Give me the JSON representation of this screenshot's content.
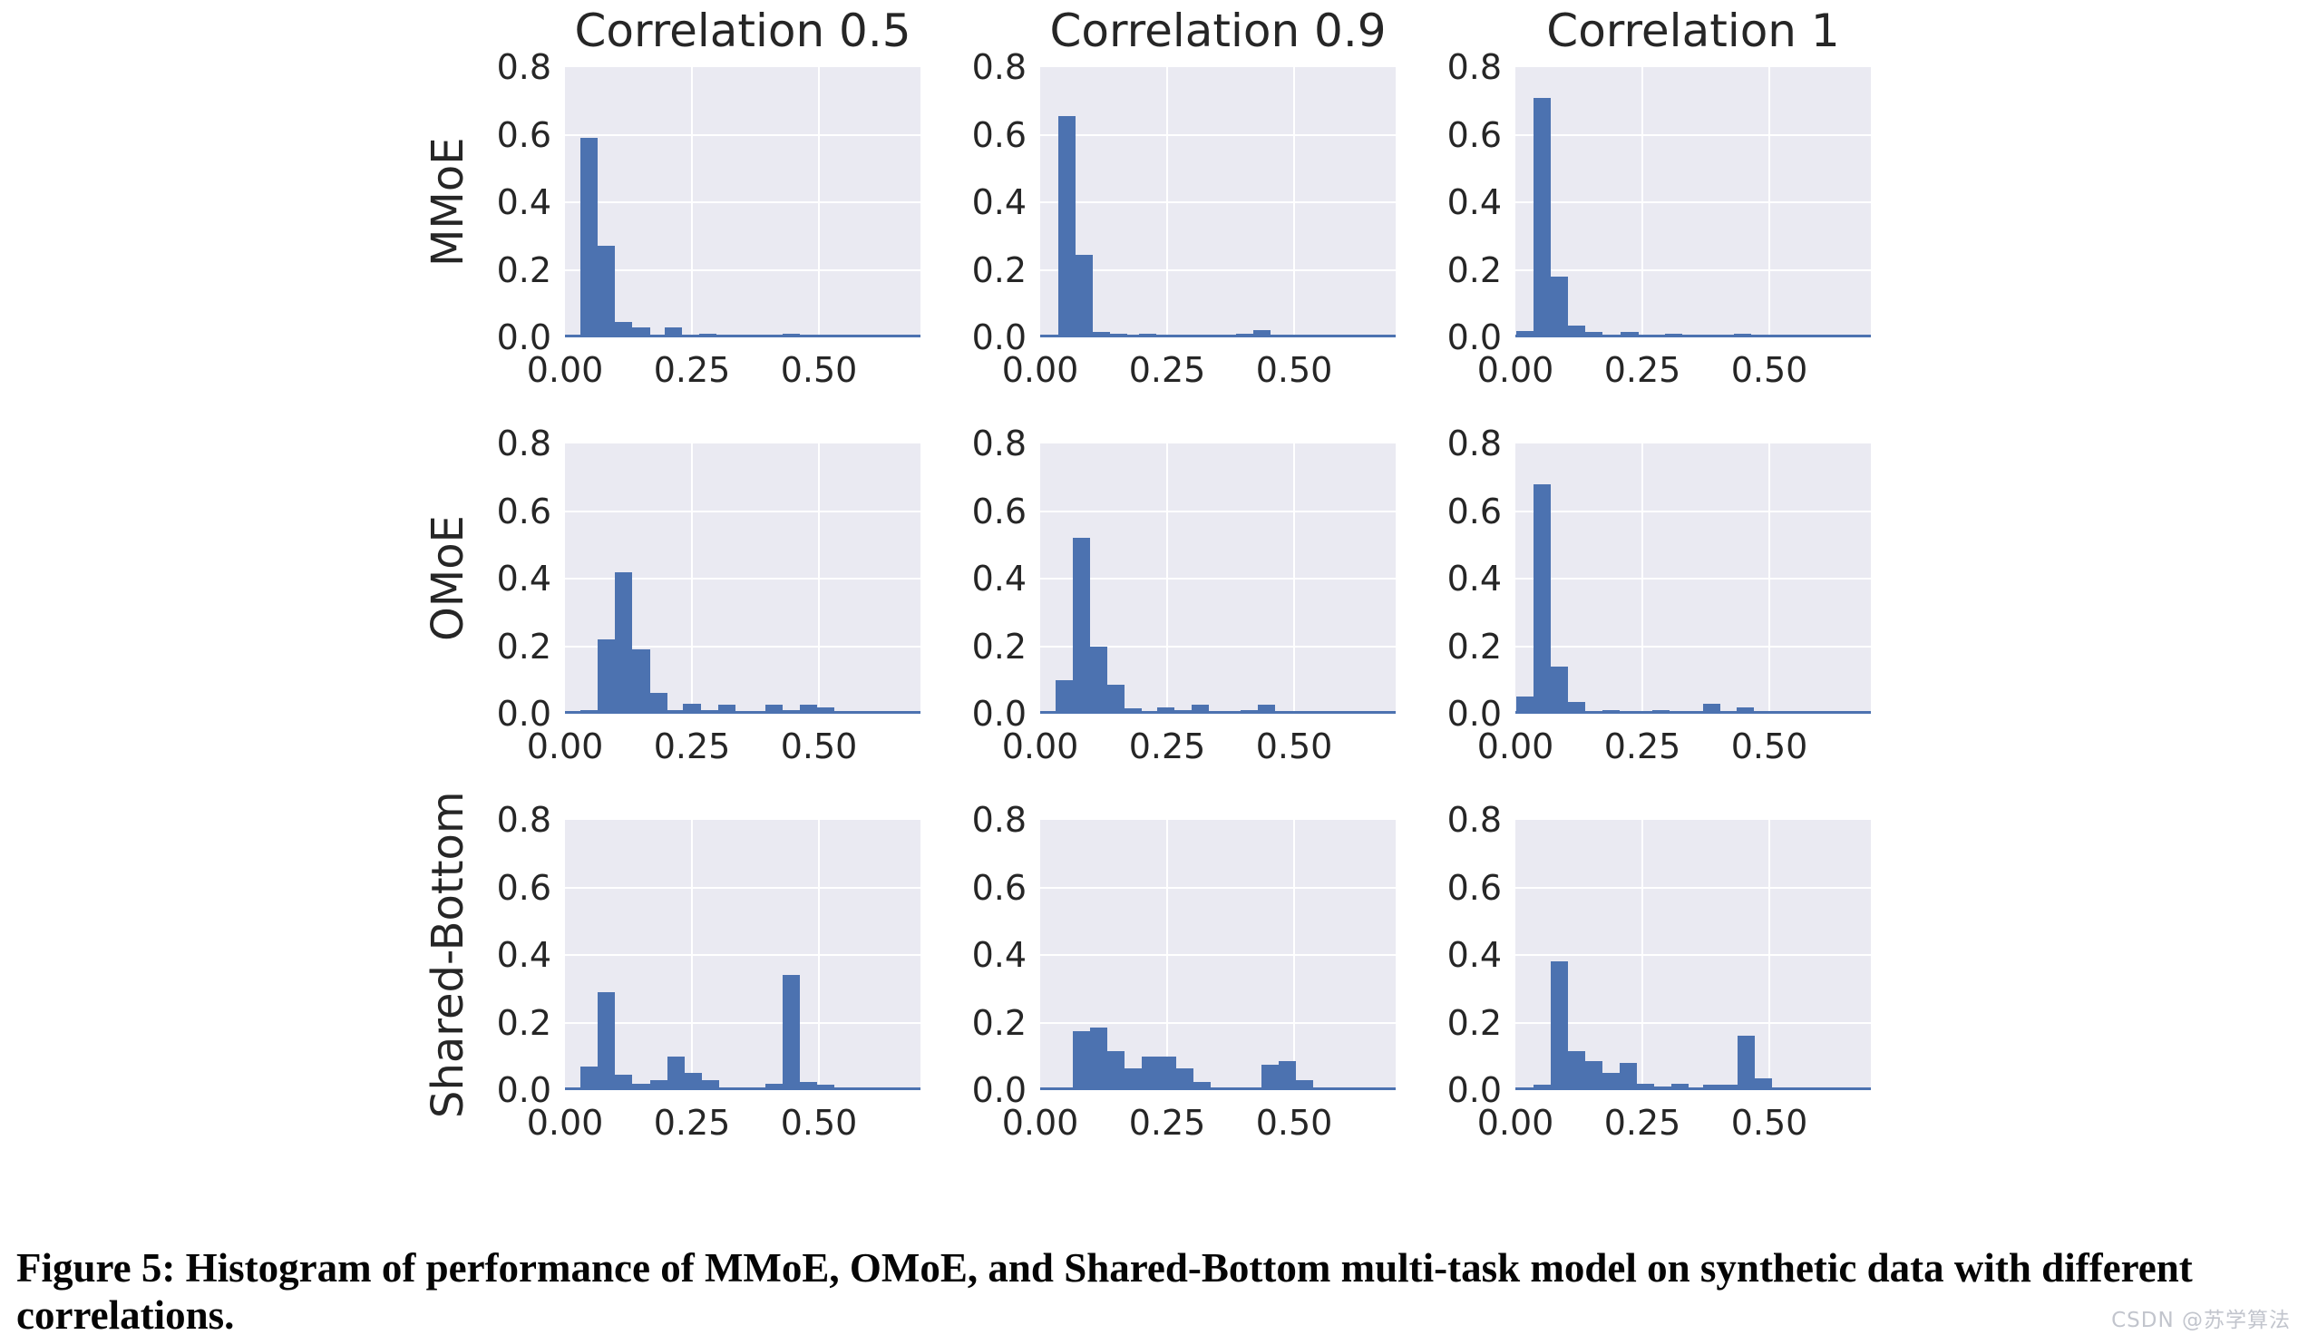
{
  "figure": {
    "caption_lines": [
      "Figure 5: Histogram of performance of MMoE, OMoE, and Shared-Bottom multi-task model on synthetic data with different",
      "correlations."
    ],
    "watermark": "CSDN @苏学算法"
  },
  "colors": {
    "bar": "#4c72b0",
    "plot_background": "#eaeaf2",
    "gridline": "#ffffff",
    "tick_text": "#262626",
    "caption_text": "#050505",
    "watermark_text": "#c2c5cd",
    "page_background": "#ffffff"
  },
  "chart_data": {
    "type": "bar",
    "subtype": "histogram-grid",
    "grid_on": true,
    "legend": null,
    "row_labels": [
      "MMoE",
      "OMoE",
      "Shared-Bottom"
    ],
    "col_titles": [
      "Correlation 0.5",
      "Correlation 0.9",
      "Correlation 1"
    ],
    "xlabel": "",
    "ylabel": "",
    "xlim": [
      0,
      0.7
    ],
    "ylim": [
      0,
      0.8
    ],
    "bin_width": 0.034,
    "xticks": {
      "values": [
        0,
        0.25,
        0.5
      ],
      "labels": [
        "0.00",
        "0.25",
        "0.50"
      ]
    },
    "yticks": {
      "values": [
        0.8,
        0.6,
        0.4,
        0.2,
        0.0
      ],
      "labels": [
        "0.8",
        "0.6",
        "0.4",
        "0.2",
        "0.0"
      ]
    },
    "grid_y_values": [
      0.2,
      0.4,
      0.6
    ],
    "grid_x_values": [
      0.25,
      0.5
    ],
    "subplots": [
      {
        "row": "MMoE",
        "col": "Correlation 0.5",
        "bars": [
          [
            0.031,
            0.59
          ],
          [
            0.065,
            0.27
          ],
          [
            0.099,
            0.045
          ],
          [
            0.133,
            0.03
          ],
          [
            0.197,
            0.03
          ],
          [
            0.265,
            0.012
          ],
          [
            0.429,
            0.012
          ],
          [
            0.525,
            0.006
          ],
          [
            0.559,
            0.006
          ]
        ]
      },
      {
        "row": "MMoE",
        "col": "Correlation 0.9",
        "bars": [
          [
            0.035,
            0.655
          ],
          [
            0.069,
            0.245
          ],
          [
            0.103,
            0.015
          ],
          [
            0.137,
            0.012
          ],
          [
            0.195,
            0.012
          ],
          [
            0.229,
            0.006
          ],
          [
            0.385,
            0.012
          ],
          [
            0.419,
            0.022
          ],
          [
            0.453,
            0.008
          ]
        ]
      },
      {
        "row": "MMoE",
        "col": "Correlation 1",
        "bars": [
          [
            0.002,
            0.02
          ],
          [
            0.036,
            0.71
          ],
          [
            0.07,
            0.18
          ],
          [
            0.104,
            0.035
          ],
          [
            0.138,
            0.015
          ],
          [
            0.172,
            0.008
          ],
          [
            0.208,
            0.015
          ],
          [
            0.242,
            0.006
          ],
          [
            0.295,
            0.012
          ],
          [
            0.43,
            0.012
          ]
        ]
      },
      {
        "row": "OMoE",
        "col": "Correlation 0.5",
        "bars": [
          [
            0.031,
            0.012
          ],
          [
            0.065,
            0.22
          ],
          [
            0.099,
            0.42
          ],
          [
            0.133,
            0.19
          ],
          [
            0.167,
            0.063
          ],
          [
            0.201,
            0.012
          ],
          [
            0.233,
            0.03
          ],
          [
            0.267,
            0.012
          ],
          [
            0.301,
            0.028
          ],
          [
            0.395,
            0.028
          ],
          [
            0.429,
            0.012
          ],
          [
            0.463,
            0.028
          ],
          [
            0.497,
            0.018
          ]
        ]
      },
      {
        "row": "OMoE",
        "col": "Correlation 0.9",
        "bars": [
          [
            0.03,
            0.1
          ],
          [
            0.064,
            0.52
          ],
          [
            0.098,
            0.2
          ],
          [
            0.132,
            0.085
          ],
          [
            0.166,
            0.015
          ],
          [
            0.23,
            0.018
          ],
          [
            0.264,
            0.012
          ],
          [
            0.298,
            0.028
          ],
          [
            0.332,
            0.006
          ],
          [
            0.395,
            0.012
          ],
          [
            0.429,
            0.028
          ],
          [
            0.463,
            0.006
          ],
          [
            0.497,
            0.006
          ],
          [
            0.6,
            0.006
          ]
        ]
      },
      {
        "row": "OMoE",
        "col": "Correlation 1",
        "bars": [
          [
            0.002,
            0.05
          ],
          [
            0.036,
            0.68
          ],
          [
            0.07,
            0.14
          ],
          [
            0.104,
            0.035
          ],
          [
            0.138,
            0.006
          ],
          [
            0.172,
            0.012
          ],
          [
            0.206,
            0.006
          ],
          [
            0.27,
            0.012
          ],
          [
            0.304,
            0.008
          ],
          [
            0.37,
            0.03
          ],
          [
            0.435,
            0.02
          ]
        ]
      },
      {
        "row": "Shared-Bottom",
        "col": "Correlation 0.5",
        "bars": [
          [
            0.031,
            0.07
          ],
          [
            0.065,
            0.29
          ],
          [
            0.099,
            0.045
          ],
          [
            0.133,
            0.02
          ],
          [
            0.167,
            0.03
          ],
          [
            0.201,
            0.1
          ],
          [
            0.235,
            0.05
          ],
          [
            0.269,
            0.03
          ],
          [
            0.303,
            0.006
          ],
          [
            0.337,
            0.006
          ],
          [
            0.395,
            0.02
          ],
          [
            0.429,
            0.34
          ],
          [
            0.463,
            0.025
          ],
          [
            0.497,
            0.015
          ],
          [
            0.595,
            0.006
          ]
        ]
      },
      {
        "row": "Shared-Bottom",
        "col": "Correlation 0.9",
        "bars": [
          [
            0.03,
            0.006
          ],
          [
            0.064,
            0.175
          ],
          [
            0.098,
            0.185
          ],
          [
            0.132,
            0.115
          ],
          [
            0.166,
            0.065
          ],
          [
            0.2,
            0.1
          ],
          [
            0.234,
            0.1
          ],
          [
            0.268,
            0.065
          ],
          [
            0.302,
            0.025
          ],
          [
            0.336,
            0.006
          ],
          [
            0.435,
            0.075
          ],
          [
            0.469,
            0.085
          ],
          [
            0.503,
            0.03
          ]
        ]
      },
      {
        "row": "Shared-Bottom",
        "col": "Correlation 1",
        "bars": [
          [
            0.035,
            0.015
          ],
          [
            0.069,
            0.38
          ],
          [
            0.103,
            0.115
          ],
          [
            0.137,
            0.085
          ],
          [
            0.171,
            0.05
          ],
          [
            0.205,
            0.08
          ],
          [
            0.239,
            0.02
          ],
          [
            0.273,
            0.01
          ],
          [
            0.307,
            0.02
          ],
          [
            0.369,
            0.015
          ],
          [
            0.403,
            0.015
          ],
          [
            0.437,
            0.16
          ],
          [
            0.471,
            0.035
          ],
          [
            0.505,
            0.006
          ]
        ]
      }
    ]
  }
}
